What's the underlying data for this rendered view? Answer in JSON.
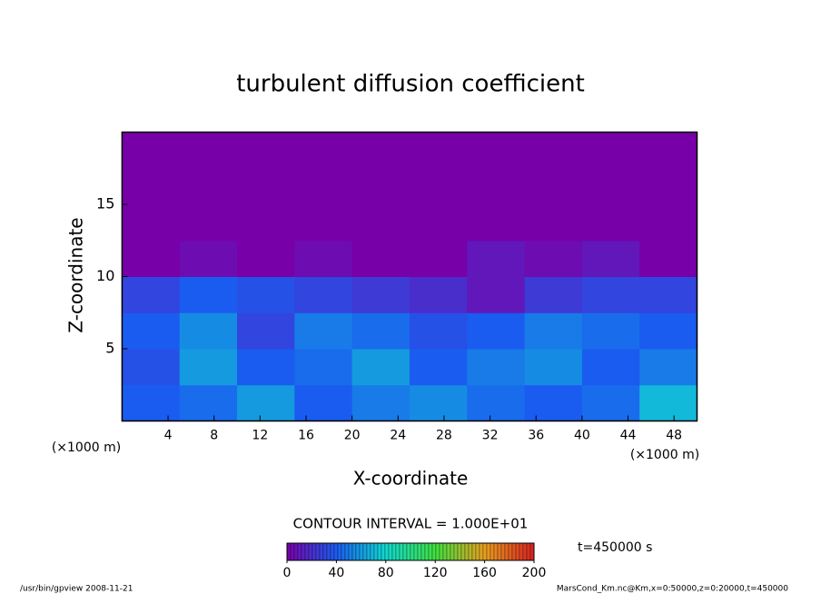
{
  "chart_data": {
    "type": "contour",
    "title": "turbulent diffusion coefficient",
    "x_label": "X-coordinate",
    "y_label": "Z-coordinate",
    "x_unit": "(×1000 m)",
    "x_unit_right": "(×1000 m)",
    "xlim": [
      0,
      50
    ],
    "ylim": [
      0,
      20
    ],
    "xticks": [
      4,
      8,
      12,
      16,
      20,
      24,
      28,
      32,
      36,
      40,
      44,
      48
    ],
    "yticks": [
      5,
      10,
      15
    ],
    "x_bins": [
      0,
      5,
      10,
      15,
      20,
      25,
      30,
      35,
      40,
      45,
      50
    ],
    "y_bins": [
      0,
      2.5,
      5,
      7.5,
      10,
      12.5,
      15,
      17.5,
      20
    ],
    "values": [
      [
        40,
        45,
        60,
        40,
        50,
        55,
        45,
        40,
        45,
        70
      ],
      [
        35,
        60,
        40,
        45,
        60,
        40,
        50,
        55,
        40,
        50
      ],
      [
        40,
        55,
        30,
        50,
        45,
        35,
        40,
        50,
        45,
        40
      ],
      [
        30,
        40,
        35,
        30,
        25,
        20,
        10,
        25,
        30,
        30
      ],
      [
        0,
        5,
        0,
        5,
        0,
        0,
        10,
        5,
        10,
        0
      ],
      [
        0,
        0,
        0,
        0,
        0,
        0,
        0,
        0,
        0,
        0
      ],
      [
        0,
        0,
        0,
        0,
        0,
        0,
        0,
        0,
        0,
        0
      ],
      [
        0,
        0,
        0,
        0,
        0,
        0,
        0,
        0,
        0,
        0
      ]
    ],
    "contour_interval": "CONTOUR INTERVAL = 1.000E+01",
    "colorbar_lim": [
      0,
      200
    ],
    "colorbar_ticks": [
      0,
      40,
      80,
      120,
      160,
      200
    ],
    "colorbar_colors": [
      "#7800a8",
      "#1a5cf0",
      "#10d8d0",
      "#40e040",
      "#e8a020",
      "#d82020"
    ],
    "time_label": "t=450000 s",
    "footer_left": "/usr/bin/gpview  2008-11-21",
    "footer_right": "MarsCond_Km.nc@Km,x=0:50000,z=0:20000,t=450000"
  }
}
